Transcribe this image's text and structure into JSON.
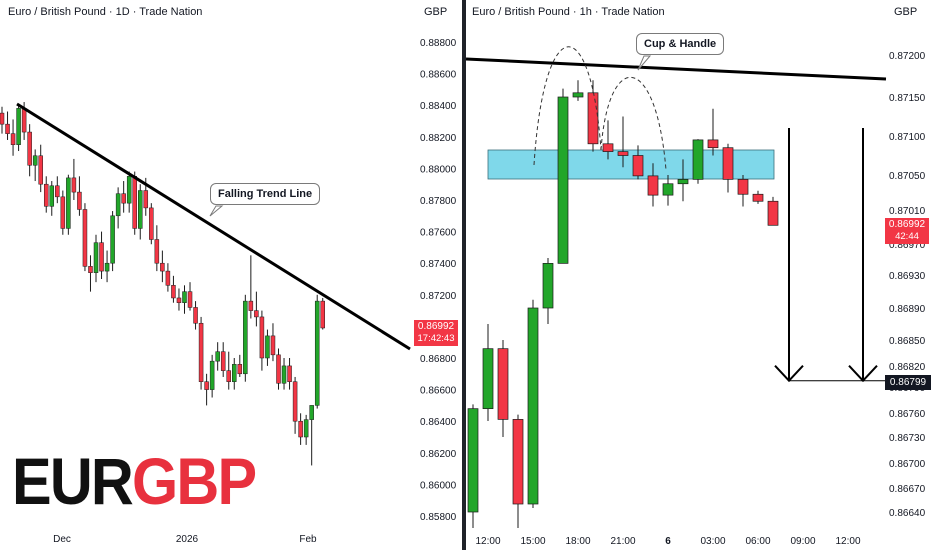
{
  "colors": {
    "up": "#22a62a",
    "down": "#f23645",
    "trend": "#000000",
    "zone": "#7fd8ea",
    "tag_bg": "#f23645",
    "target_bg": "#131722"
  },
  "ticker": {
    "base": "EUR",
    "quote": "GBP"
  },
  "chart_data": [
    {
      "type": "candlestick",
      "title": "Euro / British Pound · 1D · Trade Nation",
      "currency": "GBP",
      "ylim": [
        0.8575,
        0.8895
      ],
      "yticks": [
        "0.88800",
        "0.88600",
        "0.88400",
        "0.88200",
        "0.88000",
        "0.87800",
        "0.87600",
        "0.87400",
        "0.87200",
        "0.87000",
        "0.86800",
        "0.86600",
        "0.86400",
        "0.86200",
        "0.86000",
        "0.85800"
      ],
      "xticks": [
        "Dec",
        "2026",
        "Feb"
      ],
      "last_price": {
        "value": "0.86992",
        "countdown": "17:42:43"
      },
      "annotations": {
        "trend_line": "Falling Trend Line"
      },
      "candles": [
        [
          0.8835,
          0.8839,
          0.8822,
          0.8828
        ],
        [
          0.8828,
          0.8836,
          0.8818,
          0.8822
        ],
        [
          0.8822,
          0.8831,
          0.8808,
          0.8815
        ],
        [
          0.8815,
          0.8841,
          0.8811,
          0.8838
        ],
        [
          0.8838,
          0.8842,
          0.8818,
          0.8823
        ],
        [
          0.8823,
          0.8828,
          0.8795,
          0.8802
        ],
        [
          0.8802,
          0.8812,
          0.8792,
          0.8808
        ],
        [
          0.8808,
          0.8815,
          0.8785,
          0.879
        ],
        [
          0.879,
          0.8795,
          0.8772,
          0.8776
        ],
        [
          0.8776,
          0.8792,
          0.877,
          0.8789
        ],
        [
          0.8789,
          0.8795,
          0.8778,
          0.8782
        ],
        [
          0.8782,
          0.8786,
          0.8758,
          0.8762
        ],
        [
          0.8762,
          0.8796,
          0.8758,
          0.8794
        ],
        [
          0.8794,
          0.8806,
          0.878,
          0.8785
        ],
        [
          0.8785,
          0.8795,
          0.877,
          0.8774
        ],
        [
          0.8774,
          0.8778,
          0.8735,
          0.8738
        ],
        [
          0.8738,
          0.8745,
          0.8722,
          0.8734
        ],
        [
          0.8734,
          0.8758,
          0.8728,
          0.8753
        ],
        [
          0.8753,
          0.876,
          0.873,
          0.8735
        ],
        [
          0.8735,
          0.8748,
          0.8728,
          0.874
        ],
        [
          0.874,
          0.8773,
          0.8735,
          0.877
        ],
        [
          0.877,
          0.8788,
          0.8762,
          0.8784
        ],
        [
          0.8784,
          0.8792,
          0.8772,
          0.8778
        ],
        [
          0.8778,
          0.8798,
          0.8772,
          0.8795
        ],
        [
          0.8795,
          0.8798,
          0.8758,
          0.8762
        ],
        [
          0.8762,
          0.879,
          0.8755,
          0.8786
        ],
        [
          0.8786,
          0.8794,
          0.877,
          0.8775
        ],
        [
          0.8775,
          0.8778,
          0.8752,
          0.8755
        ],
        [
          0.8755,
          0.8764,
          0.8735,
          0.874
        ],
        [
          0.874,
          0.8748,
          0.8728,
          0.8735
        ],
        [
          0.8735,
          0.874,
          0.8722,
          0.8726
        ],
        [
          0.8726,
          0.8732,
          0.8715,
          0.8718
        ],
        [
          0.8718,
          0.8724,
          0.871,
          0.8715
        ],
        [
          0.8715,
          0.8726,
          0.8708,
          0.8722
        ],
        [
          0.8722,
          0.8728,
          0.871,
          0.8712
        ],
        [
          0.8712,
          0.8716,
          0.8698,
          0.8702
        ],
        [
          0.8702,
          0.8706,
          0.866,
          0.8665
        ],
        [
          0.8665,
          0.867,
          0.865,
          0.866
        ],
        [
          0.866,
          0.8682,
          0.8655,
          0.8678
        ],
        [
          0.8678,
          0.869,
          0.8672,
          0.8684
        ],
        [
          0.8684,
          0.869,
          0.8668,
          0.8672
        ],
        [
          0.8672,
          0.8684,
          0.866,
          0.8665
        ],
        [
          0.8665,
          0.868,
          0.866,
          0.8676
        ],
        [
          0.8676,
          0.8682,
          0.8668,
          0.867
        ],
        [
          0.867,
          0.872,
          0.8665,
          0.8716
        ],
        [
          0.8716,
          0.8745,
          0.8705,
          0.871
        ],
        [
          0.871,
          0.8722,
          0.87,
          0.8706
        ],
        [
          0.8706,
          0.871,
          0.8672,
          0.868
        ],
        [
          0.868,
          0.8698,
          0.8675,
          0.8694
        ],
        [
          0.8694,
          0.8702,
          0.8678,
          0.8682
        ],
        [
          0.8682,
          0.8686,
          0.866,
          0.8664
        ],
        [
          0.8664,
          0.868,
          0.866,
          0.8675
        ],
        [
          0.8675,
          0.868,
          0.866,
          0.8665
        ],
        [
          0.8665,
          0.8668,
          0.8632,
          0.864
        ],
        [
          0.864,
          0.8645,
          0.8625,
          0.863
        ],
        [
          0.863,
          0.8644,
          0.8625,
          0.8641
        ],
        [
          0.8641,
          0.865,
          0.8612,
          0.865
        ],
        [
          0.865,
          0.872,
          0.8648,
          0.8716
        ],
        [
          0.8716,
          0.8718,
          0.8698,
          0.8699
        ]
      ]
    },
    {
      "type": "candlestick",
      "title": "Euro / British Pound · 1h · Trade Nation",
      "currency": "GBP",
      "yticks": [
        "0.87200",
        "0.87150",
        "0.87100",
        "0.87050",
        "0.87010",
        "0.86970",
        "0.86930",
        "0.86890",
        "0.86850",
        "0.86820",
        "0.86790",
        "0.86760",
        "0.86730",
        "0.86700",
        "0.86670",
        "0.86640"
      ],
      "xticks": [
        "12:00",
        "15:00",
        "18:00",
        "21:00",
        "6",
        "03:00",
        "06:00",
        "09:00",
        "12:00"
      ],
      "last_price": {
        "value": "0.86992",
        "countdown": "42:44"
      },
      "target_price": "0.86799",
      "annotations": {
        "pattern": "Cup & Handle"
      },
      "candles": [
        [
          0.8664,
          0.8677,
          0.8662,
          0.86765
        ],
        [
          0.86765,
          0.8687,
          0.8675,
          0.8684
        ],
        [
          0.8684,
          0.8685,
          0.8673,
          0.86752
        ],
        [
          0.86752,
          0.86758,
          0.8662,
          0.8665
        ],
        [
          0.8665,
          0.869,
          0.86645,
          0.8689
        ],
        [
          0.8689,
          0.86952,
          0.8687,
          0.86945
        ],
        [
          0.86945,
          0.8716,
          0.86945,
          0.8715
        ],
        [
          0.8715,
          0.8717,
          0.87145,
          0.87155
        ],
        [
          0.87155,
          0.8717,
          0.8708,
          0.8709
        ],
        [
          0.8709,
          0.8712,
          0.8707,
          0.8708
        ],
        [
          0.8708,
          0.87125,
          0.8706,
          0.87075
        ],
        [
          0.87075,
          0.87088,
          0.87045,
          0.87049
        ],
        [
          0.87049,
          0.87065,
          0.87014,
          0.87027
        ],
        [
          0.87027,
          0.8705,
          0.87015,
          0.8704
        ],
        [
          0.8704,
          0.8707,
          0.8702,
          0.87045
        ],
        [
          0.87045,
          0.87096,
          0.8704,
          0.87095
        ],
        [
          0.87095,
          0.87135,
          0.87075,
          0.87085
        ],
        [
          0.87085,
          0.8709,
          0.8703,
          0.87045
        ],
        [
          0.87045,
          0.8705,
          0.87014,
          0.87028
        ],
        [
          0.87028,
          0.87032,
          0.87017,
          0.8702
        ],
        [
          0.8702,
          0.87025,
          0.86992,
          0.86992
        ]
      ]
    }
  ]
}
